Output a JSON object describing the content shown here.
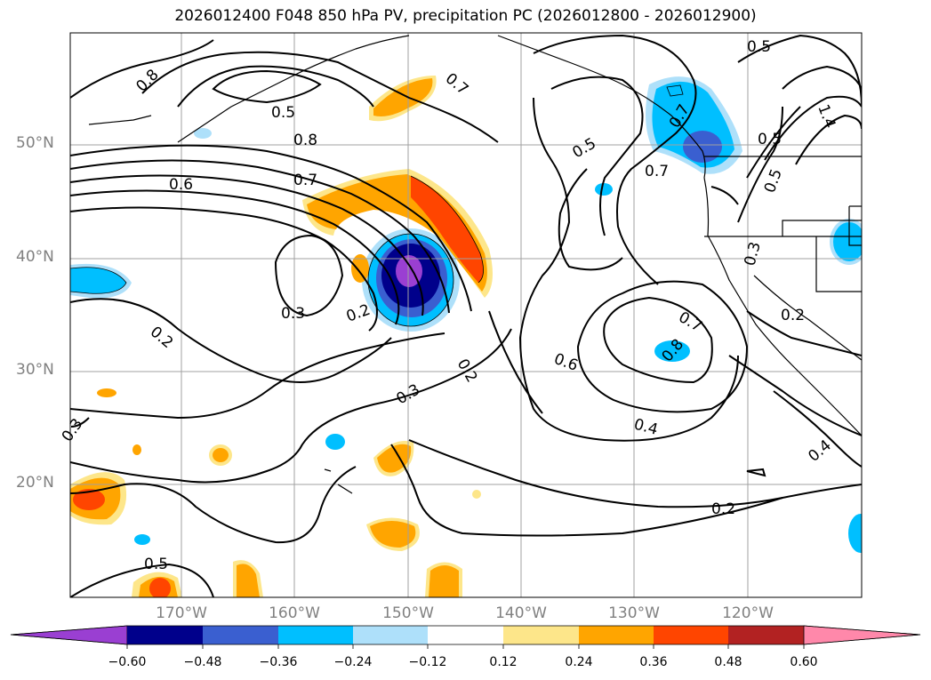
{
  "title": "2026012400 F048 850 hPa PV, precipitation PC (2026012800 - 2026012900)",
  "latitude_labels": [
    "50°N",
    "40°N",
    "30°N",
    "20°N"
  ],
  "longitude_labels": [
    "170°W",
    "160°W",
    "150°W",
    "140°W",
    "130°W",
    "120°W"
  ],
  "colorbar": {
    "ticks": [
      "−0.60",
      "−0.48",
      "−0.36",
      "−0.24",
      "−0.12",
      "0.12",
      "0.24",
      "0.36",
      "0.48",
      "0.60"
    ],
    "colors": [
      "#9a3fd2",
      "#00008b",
      "#3a5fd0",
      "#00bfff",
      "#aee0fa",
      "#ffffff",
      "#fde68a",
      "#ffa500",
      "#ff4500",
      "#b22222",
      "#ff88aa"
    ]
  },
  "contour_labels": [
    "0.8",
    "0.5",
    "0.7",
    "0.5",
    "0.5",
    "0.7",
    "0.7",
    "0.5",
    "0.8",
    "0.6",
    "0.7",
    "0.3",
    "0.2",
    "0.3",
    "0.2",
    "0.3",
    "0.6",
    "0.7",
    "0.8",
    "0.2",
    "0.4",
    "0.3",
    "0.2",
    "0.2",
    "0.4",
    "1.4",
    "0.5",
    "0.5"
  ]
}
